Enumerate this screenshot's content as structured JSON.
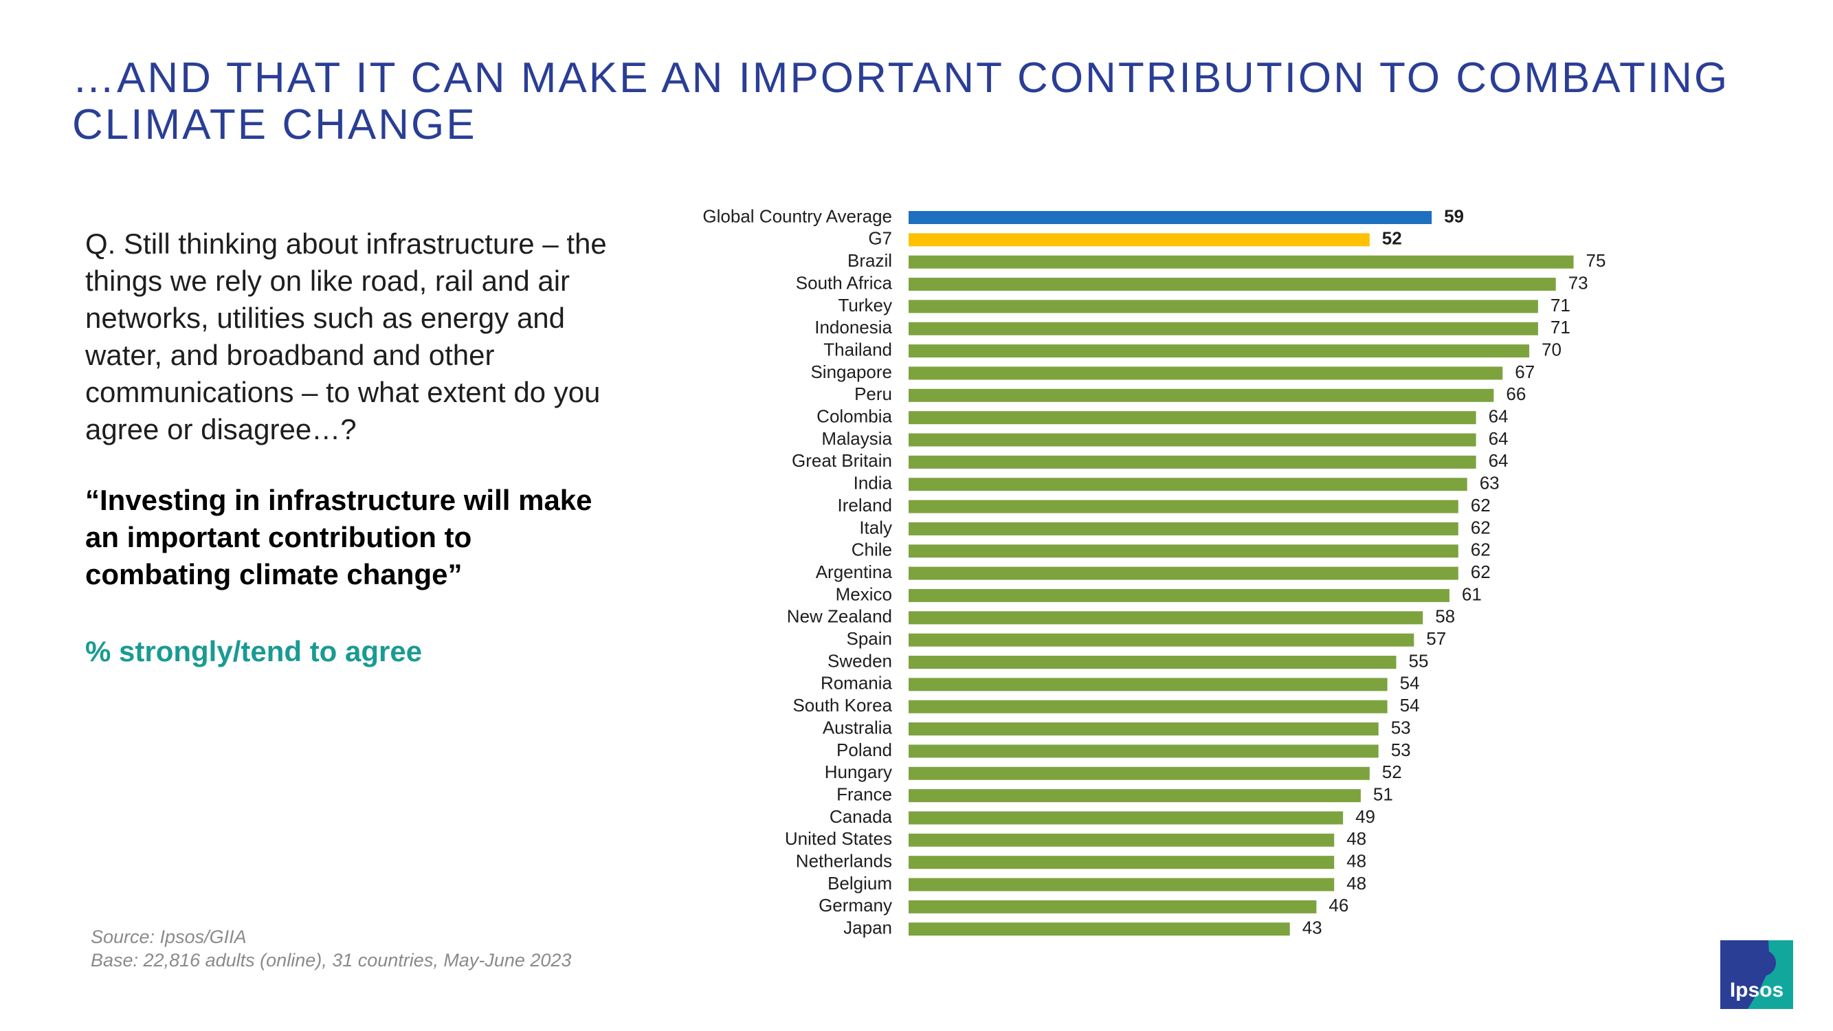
{
  "header": {
    "title_line1": "…AND THAT IT CAN MAKE AN IMPORTANT CONTRIBUTION TO COMBATING",
    "title_line2": "CLIMATE CHANGE"
  },
  "question": {
    "text": "Q. Still thinking about infrastructure – the things we rely on like road, rail and air networks, utilities such as energy and water, and broadband and other communications – to what extent do you agree or disagree…?",
    "statement": "“Investing in infrastructure will make an important contribution to combating climate change”",
    "measure": "% strongly/tend to agree"
  },
  "footer": {
    "source": "Source: Ipsos/GIIA",
    "base": "Base: 22,816 adults (online), 31 countries, May-June 2023"
  },
  "logo": {
    "text": "Ipsos"
  },
  "colors": {
    "title": "#2a3e96",
    "measure": "#1a9a93",
    "global_bar": "#1f6fc0",
    "g7_bar": "#ffc000",
    "country_bar": "#7da33f",
    "logo_blue": "#2a3e96",
    "logo_teal": "#12a79d"
  },
  "chart_data": {
    "type": "bar",
    "orientation": "horizontal",
    "xlim": [
      0,
      100
    ],
    "categories": [
      "Global Country Average",
      "G7",
      "Brazil",
      "South Africa",
      "Turkey",
      "Indonesia",
      "Thailand",
      "Singapore",
      "Peru",
      "Colombia",
      "Malaysia",
      "Great Britain",
      "India",
      "Ireland",
      "Italy",
      "Chile",
      "Argentina",
      "Mexico",
      "New Zealand",
      "Spain",
      "Sweden",
      "Romania",
      "South Korea",
      "Australia",
      "Poland",
      "Hungary",
      "France",
      "Canada",
      "United States",
      "Netherlands",
      "Belgium",
      "Germany",
      "Japan"
    ],
    "values": [
      59,
      52,
      75,
      73,
      71,
      71,
      70,
      67,
      66,
      64,
      64,
      64,
      63,
      62,
      62,
      62,
      62,
      61,
      58,
      57,
      55,
      54,
      54,
      53,
      53,
      52,
      51,
      49,
      48,
      48,
      48,
      46,
      43
    ],
    "data_labels": true,
    "bold_labels_for": [
      "Global Country Average",
      "G7"
    ]
  }
}
